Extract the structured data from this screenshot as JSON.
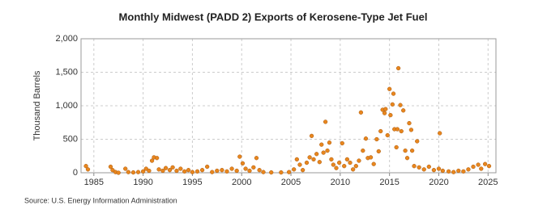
{
  "chart_data": {
    "type": "scatter",
    "title": "Monthly Midwest (PADD 2) Exports of Kerosene-Type Jet Fuel",
    "y_label": "Thousand Barrels",
    "source": "Source: U.S. Energy Information Administration",
    "color": "#e8861e",
    "grid": true,
    "xlim": [
      1983.7,
      2025.8
    ],
    "xticks": [
      1985,
      1990,
      1995,
      2000,
      2005,
      2010,
      2015,
      2020,
      2025
    ],
    "ylim": [
      0,
      2000
    ],
    "yticks": [
      0,
      500,
      {
        "value": 1000,
        "label": "1,000"
      },
      {
        "value": 1500,
        "label": "1,500"
      },
      {
        "value": 2000,
        "label": "2,000"
      }
    ],
    "x": [
      1984.2,
      1984.4,
      1986.7,
      1986.9,
      1987.2,
      1987.5,
      1988.2,
      1988.5,
      1989,
      1989.5,
      1990,
      1990.3,
      1990.6,
      1990.9,
      1991.1,
      1991.4,
      1991.6,
      1992,
      1992.3,
      1992.7,
      1993,
      1993.4,
      1993.8,
      1994.2,
      1994.6,
      1995,
      1995.5,
      1996,
      1996.5,
      1997,
      1997.5,
      1998,
      1998.5,
      1999,
      1999.5,
      1999.8,
      2000.1,
      2000.4,
      2000.8,
      2001.2,
      2001.5,
      2001.8,
      2002.2,
      2003,
      2004,
      2004.8,
      2005.3,
      2005.6,
      2005.9,
      2006.2,
      2006.6,
      2006.9,
      2007.1,
      2007.3,
      2007.6,
      2007.9,
      2008.1,
      2008.3,
      2008.5,
      2008.7,
      2008.9,
      2009.1,
      2009.3,
      2009.6,
      2009.9,
      2010.2,
      2010.4,
      2010.7,
      2011,
      2011.3,
      2011.6,
      2011.9,
      2012.1,
      2012.3,
      2012.6,
      2012.8,
      2013.1,
      2013.4,
      2013.7,
      2013.9,
      2014.1,
      2014.3,
      2014.5,
      2014.6,
      2014.8,
      2015,
      2015.1,
      2015.3,
      2015.4,
      2015.5,
      2015.7,
      2015.8,
      2015.9,
      2016.1,
      2016.2,
      2016.4,
      2016.6,
      2016.8,
      2017,
      2017.2,
      2017.3,
      2017.5,
      2017.8,
      2018,
      2018.5,
      2019,
      2019.5,
      2020,
      2020.1,
      2020.4,
      2021,
      2021.5,
      2022,
      2022.5,
      2023,
      2023.5,
      2024,
      2024.3,
      2024.7,
      2025.1
    ],
    "values": [
      100,
      50,
      90,
      40,
      10,
      0,
      60,
      10,
      5,
      10,
      20,
      60,
      30,
      180,
      230,
      220,
      50,
      30,
      70,
      40,
      80,
      30,
      60,
      20,
      40,
      10,
      20,
      40,
      90,
      10,
      30,
      40,
      20,
      60,
      30,
      240,
      140,
      60,
      30,
      80,
      220,
      40,
      10,
      5,
      5,
      10,
      50,
      200,
      120,
      40,
      150,
      230,
      550,
      200,
      280,
      160,
      420,
      300,
      760,
      330,
      450,
      200,
      120,
      70,
      150,
      440,
      100,
      200,
      150,
      50,
      100,
      180,
      900,
      330,
      510,
      220,
      230,
      130,
      500,
      320,
      620,
      940,
      890,
      950,
      560,
      1250,
      860,
      1020,
      1180,
      650,
      380,
      650,
      1560,
      1010,
      620,
      930,
      330,
      220,
      740,
      640,
      330,
      100,
      470,
      80,
      50,
      90,
      40,
      60,
      590,
      30,
      20,
      10,
      30,
      20,
      50,
      90,
      120,
      60,
      130,
      100
    ]
  }
}
